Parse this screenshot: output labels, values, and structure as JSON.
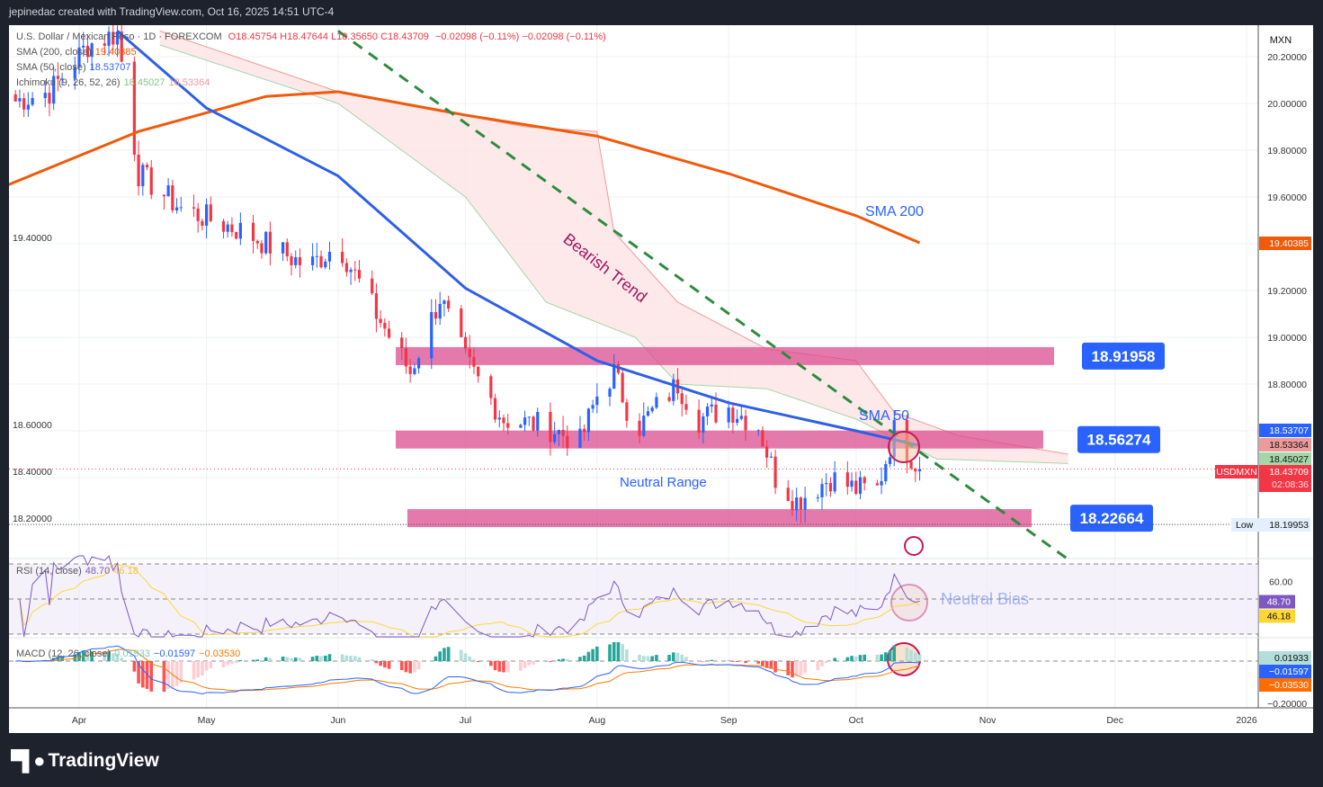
{
  "header": {
    "credit": "jepinedac created with TradingView.com, Oct 16, 2025 14:51 UTC-4"
  },
  "footer": {
    "brand": "TradingView",
    "logo_text": "17"
  },
  "legend": {
    "symbol": "U.S. Dollar / Mexican Peso · 1D · FOREXCOM",
    "ohlc": "O18.45754  H18.47644  L18.35650  C18.43709",
    "change": "−0.02098 (−0.11%)  −0.02098 (−0.11%)",
    "sma200_label": "SMA (200, close)",
    "sma200_value": "19.40385",
    "sma50_label": "SMA (50, close)",
    "sma50_value": "18.53707",
    "ichimoku_label": "Ichimoku (9, 26, 52, 26)",
    "ichimoku_a": "18.45027",
    "ichimoku_b": "18.53364",
    "rsi_label": "RSI (14, close)",
    "rsi_value": "48.70",
    "rsi_ma": "46.18",
    "macd_label": "MACD (12, 26, close)",
    "macd_hist": "0.01933",
    "macd_line": "−0.01597",
    "macd_signal": "−0.03530"
  },
  "colors": {
    "up": "#2962ff",
    "down": "#f23645",
    "sma200": "#f05a0a",
    "sma50": "#2f5ee8",
    "zone": "#d9478a",
    "trend": "#2e8b3e",
    "rsi": "#7e57c2",
    "rsi_ma": "#fdd835"
  },
  "chart_data": {
    "type": "candlestick",
    "symbol": "USDMXN",
    "currency_label": "MXN",
    "ylim": [
      18.0,
      20.31
    ],
    "y_ticks": [
      "20.20000",
      "20.00000",
      "19.80000",
      "19.60000",
      "19.40000",
      "19.20000",
      "19.00000",
      "18.80000",
      "18.60000",
      "18.40000",
      "18.20000"
    ],
    "x_ticks": [
      "Apr",
      "May",
      "Jun",
      "Jul",
      "Aug",
      "Sep",
      "Oct",
      "Nov",
      "Dec",
      "2026"
    ],
    "close_keypoints": [
      [
        "2025-03-15",
        20.0
      ],
      [
        "2025-03-25",
        20.05
      ],
      [
        "2025-04-03",
        20.25
      ],
      [
        "2025-04-10",
        20.3
      ],
      [
        "2025-04-15",
        19.7
      ],
      [
        "2025-04-25",
        19.55
      ],
      [
        "2025-05-10",
        19.45
      ],
      [
        "2025-05-25",
        19.3
      ],
      [
        "2025-06-01",
        19.4
      ],
      [
        "2025-06-10",
        19.1
      ],
      [
        "2025-06-18",
        18.85
      ],
      [
        "2025-06-25",
        19.17
      ],
      [
        "2025-07-01",
        18.9
      ],
      [
        "2025-07-10",
        18.65
      ],
      [
        "2025-07-20",
        18.62
      ],
      [
        "2025-07-28",
        18.55
      ],
      [
        "2025-08-01",
        18.75
      ],
      [
        "2025-08-05",
        18.85
      ],
      [
        "2025-08-10",
        18.6
      ],
      [
        "2025-08-20",
        18.8
      ],
      [
        "2025-08-25",
        18.65
      ],
      [
        "2025-09-01",
        18.7
      ],
      [
        "2025-09-08",
        18.62
      ],
      [
        "2025-09-12",
        18.4
      ],
      [
        "2025-09-17",
        18.3
      ],
      [
        "2025-09-25",
        18.4
      ],
      [
        "2025-10-01",
        18.35
      ],
      [
        "2025-10-06",
        18.35
      ],
      [
        "2025-10-10",
        18.6
      ],
      [
        "2025-10-16",
        18.437
      ]
    ],
    "sma200": [
      [
        "2025-03-15",
        19.65
      ],
      [
        "2025-04-15",
        19.88
      ],
      [
        "2025-05-15",
        20.03
      ],
      [
        "2025-06-01",
        20.05
      ],
      [
        "2025-07-01",
        19.95
      ],
      [
        "2025-08-01",
        19.86
      ],
      [
        "2025-09-01",
        19.7
      ],
      [
        "2025-10-01",
        19.52
      ],
      [
        "2025-10-16",
        19.404
      ]
    ],
    "sma50": [
      [
        "2025-04-10",
        20.31
      ],
      [
        "2025-05-01",
        19.98
      ],
      [
        "2025-06-01",
        19.69
      ],
      [
        "2025-07-01",
        19.21
      ],
      [
        "2025-08-01",
        18.9
      ],
      [
        "2025-09-01",
        18.72
      ],
      [
        "2025-10-01",
        18.6
      ],
      [
        "2025-10-16",
        18.537
      ]
    ],
    "ichimoku_upper": [
      [
        "2025-04-20",
        20.31
      ],
      [
        "2025-06-01",
        20.05
      ],
      [
        "2025-07-15",
        19.9
      ],
      [
        "2025-08-01",
        19.88
      ],
      [
        "2025-08-05",
        19.45
      ],
      [
        "2025-08-20",
        19.15
      ],
      [
        "2025-09-10",
        18.95
      ],
      [
        "2025-10-01",
        18.9
      ],
      [
        "2025-10-10",
        18.68
      ],
      [
        "2025-10-25",
        18.58
      ],
      [
        "2025-11-20",
        18.5
      ]
    ],
    "ichimoku_lower": [
      [
        "2025-04-20",
        20.25
      ],
      [
        "2025-06-01",
        20.0
      ],
      [
        "2025-07-01",
        19.6
      ],
      [
        "2025-07-20",
        19.15
      ],
      [
        "2025-08-10",
        19.0
      ],
      [
        "2025-08-20",
        18.8
      ],
      [
        "2025-09-10",
        18.78
      ],
      [
        "2025-10-01",
        18.65
      ],
      [
        "2025-10-20",
        18.48
      ],
      [
        "2025-11-20",
        18.46
      ]
    ],
    "price_labels": [
      {
        "text": "19.40385",
        "color": "#f05a0a"
      },
      {
        "text": "18.53707",
        "color": "#2962ff"
      },
      {
        "text": "18.53364",
        "color": "#ef9a9a"
      },
      {
        "text": "18.45027",
        "color": "#a5d6a7"
      },
      {
        "text": "18.43709",
        "color": "#f23645"
      }
    ],
    "countdown": "02:08:36",
    "low_label": "Low",
    "low_value": "18.19953",
    "zones": [
      {
        "level": 18.91958,
        "label": "18.91958"
      },
      {
        "level": 18.56274,
        "label": "18.56274"
      },
      {
        "level": 18.22664,
        "label": "18.22664"
      }
    ],
    "annotations": {
      "trend": "Bearish Trend",
      "sma200": "SMA 200",
      "sma50": "SMA 50",
      "range": "Neutral Range",
      "bias": "Neutral Bias"
    },
    "trendline": [
      [
        "2025-06-01",
        20.31
      ],
      [
        "2025-11-20",
        18.05
      ]
    ],
    "rsi": {
      "ylim": [
        30,
        70
      ],
      "tick": "60.00",
      "last": 48.7,
      "ma_last": 46.18
    },
    "macd": {
      "tick": "−0.20000",
      "hist_last": 0.01933,
      "macd_last": -0.01597,
      "signal_last": -0.0353
    }
  }
}
